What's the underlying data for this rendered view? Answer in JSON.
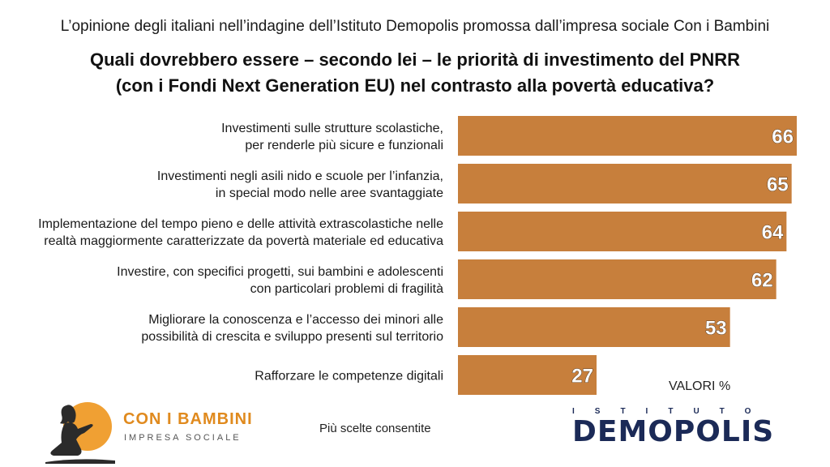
{
  "header": {
    "subtitle": "L’opinione degli italiani nell’indagine dell’Istituto Demopolis promossa dall’impresa sociale Con i Bambini",
    "title_line1": "Quali dovrebbero essere – secondo lei – le priorità di investimento del PNRR",
    "title_line2": "(con i Fondi Next Generation EU) nel contrasto alla povertà educativa?"
  },
  "chart_data": {
    "type": "bar",
    "orientation": "horizontal",
    "categories": [
      [
        "Investimenti sulle strutture scolastiche,",
        "per renderle più sicure e funzionali"
      ],
      [
        "Investimenti negli asili nido e scuole per l’infanzia,",
        "in special modo nelle aree svantaggiate"
      ],
      [
        "Implementazione del tempo pieno e delle attività extrascolastiche nelle",
        "realtà maggiormente caratterizzate da povertà materiale ed educativa"
      ],
      [
        "Investire, con specifici progetti, sui bambini e adolescenti",
        "con particolari problemi di fragilità"
      ],
      [
        "Migliorare la conoscenza e l’accesso dei minori alle",
        "possibilità di crescita e sviluppo presenti sul territorio"
      ],
      [
        "Rafforzare le competenze digitali"
      ]
    ],
    "values": [
      66,
      65,
      64,
      62,
      53,
      27
    ],
    "unit_label": "VALORI %",
    "bar_color": "#c77f3c",
    "xlim": [
      0,
      70
    ]
  },
  "footer": {
    "note": "Più scelte consentite",
    "logo_left_name": "CON I BAMBINI",
    "logo_left_sub": "IMPRESA SOCIALE",
    "logo_right_top": "ISTITUTO",
    "logo_right_name": "DEMOPOLIS"
  },
  "colors": {
    "bar": "#c77f3c",
    "brand_orange": "#e08a1e",
    "demopolis_navy": "#1b2a57"
  }
}
